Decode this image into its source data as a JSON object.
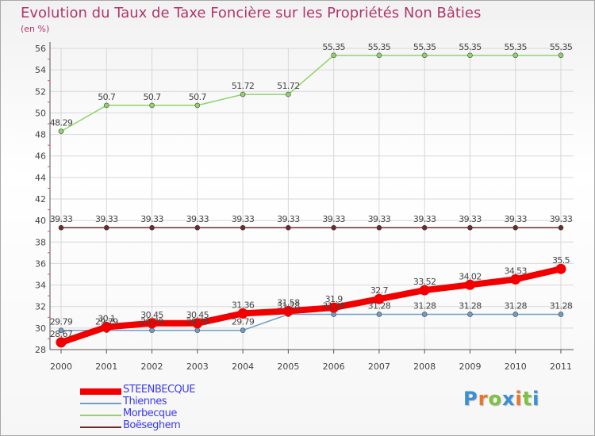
{
  "title": "Evolution du Taux de Taxe Foncière sur les Propriétés Non Bâties",
  "unit": "(en %)",
  "logo": {
    "text": "Proxiti",
    "letter_colors": [
      "#3a8fd6",
      "#e8762b",
      "#7cc142",
      "#3a8fd6",
      "#e8762b",
      "#7cc142",
      "#3a8fd6"
    ]
  },
  "chart_data": {
    "type": "line",
    "title": "Evolution du Taux de Taxe Foncière sur les Propriétés Non Bâties",
    "ylabel": "(en %)",
    "x": [
      "2000",
      "2001",
      "2002",
      "2003",
      "2004",
      "2005",
      "2006",
      "2007",
      "2008",
      "2009",
      "2010",
      "2011"
    ],
    "ylim": [
      28,
      56
    ],
    "yticks": [
      "28",
      "30",
      "32",
      "34",
      "36",
      "38",
      "40",
      "42",
      "44",
      "46",
      "48",
      "50",
      "52",
      "54",
      "56"
    ],
    "grid": true,
    "legend_position": "bottom-left",
    "series": [
      {
        "name": "STEENBECQUE",
        "color": "#f20000",
        "text_color": "#3b3bf0",
        "emphasis": true,
        "values": [
          28.67,
          30.1,
          30.45,
          30.45,
          31.36,
          31.58,
          31.9,
          32.7,
          33.52,
          34.02,
          34.53,
          35.5
        ],
        "labels": [
          "28.67",
          "30.1",
          "30.45",
          "30.45",
          "31.36",
          "31.58",
          "31.9",
          "32.7",
          "33.52",
          "34.02",
          "34.53",
          "35.5"
        ]
      },
      {
        "name": "Thiennes",
        "color": "#6e9dc8",
        "text_color": "#3b3bf0",
        "emphasis": false,
        "values": [
          29.79,
          29.79,
          29.79,
          29.79,
          29.79,
          31.28,
          31.28,
          31.28,
          31.28,
          31.28,
          31.28,
          31.28
        ],
        "labels": [
          "29.79",
          "29.79",
          "29.79",
          "29.79",
          "29.79",
          "31.28",
          "31.28",
          "31.28",
          "31.28",
          "31.28",
          "31.28",
          "31.28"
        ]
      },
      {
        "name": "Morbecque",
        "color": "#8fd36a",
        "text_color": "#3b3bf0",
        "emphasis": false,
        "values": [
          48.29,
          50.7,
          50.7,
          50.7,
          51.72,
          51.72,
          55.35,
          55.35,
          55.35,
          55.35,
          55.35,
          55.35
        ],
        "labels": [
          "48.29",
          "50.7",
          "50.7",
          "50.7",
          "51.72",
          "51.72",
          "55.35",
          "55.35",
          "55.35",
          "55.35",
          "55.35",
          "55.35"
        ]
      },
      {
        "name": "Boëseghem",
        "color": "#6b2c2c",
        "text_color": "#3b3bf0",
        "emphasis": false,
        "values": [
          39.33,
          39.33,
          39.33,
          39.33,
          39.33,
          39.33,
          39.33,
          39.33,
          39.33,
          39.33,
          39.33,
          39.33
        ],
        "labels": [
          "39.33",
          "39.33",
          "39.33",
          "39.33",
          "39.33",
          "39.33",
          "39.33",
          "39.33",
          "39.33",
          "39.33",
          "39.33",
          "39.33"
        ]
      }
    ]
  }
}
